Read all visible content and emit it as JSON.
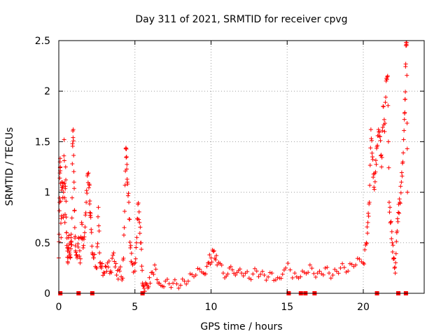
{
  "chart_data": {
    "type": "scatter",
    "title": "Day 311 of 2021, SRMTID for receiver cpvg",
    "xlabel": "GPS time / hours",
    "ylabel": "SRMTID / TECUs",
    "xlim": [
      0,
      24
    ],
    "ylim": [
      0,
      2.5
    ],
    "xticks": [
      0,
      5,
      10,
      15,
      20
    ],
    "xtick_labels": [
      "0",
      "5",
      "10",
      "15",
      "20"
    ],
    "yticks": [
      0,
      0.5,
      1,
      1.5,
      2,
      2.5
    ],
    "ytick_labels": [
      "0",
      "0.5",
      "1",
      "1.5",
      "2",
      "2.5"
    ],
    "grid": true,
    "marker": "+",
    "color": "#ff0000",
    "series": [
      {
        "name": "SRMTID",
        "points": [
          [
            0.0,
            0.35
          ],
          [
            0.05,
            0.9
          ],
          [
            0.08,
            1.3
          ],
          [
            0.1,
            1.25
          ],
          [
            0.15,
            0.55
          ],
          [
            0.2,
            1.1
          ],
          [
            0.25,
            1.05
          ],
          [
            0.3,
            0.75
          ],
          [
            0.35,
            1.52
          ],
          [
            0.4,
            0.7
          ],
          [
            0.45,
            1.25
          ],
          [
            0.5,
            0.6
          ],
          [
            0.55,
            0.45
          ],
          [
            0.6,
            0.3
          ],
          [
            0.65,
            0.55
          ],
          [
            0.7,
            0.4
          ],
          [
            0.75,
            0.35
          ],
          [
            0.8,
            0.55
          ],
          [
            0.85,
            0.48
          ],
          [
            0.9,
            1.48
          ],
          [
            0.95,
            1.62
          ],
          [
            1.0,
            1.1
          ],
          [
            1.05,
            0.65
          ],
          [
            1.1,
            0.42
          ],
          [
            1.2,
            0.35
          ],
          [
            1.3,
            0.55
          ],
          [
            1.4,
            0.3
          ],
          [
            1.5,
            0.7
          ],
          [
            1.6,
            0.45
          ],
          [
            1.7,
            0.6
          ],
          [
            1.8,
            0.9
          ],
          [
            1.9,
            1.18
          ],
          [
            2.0,
            1.08
          ],
          [
            2.05,
            0.8
          ],
          [
            2.1,
            0.75
          ],
          [
            2.2,
            0.4
          ],
          [
            2.3,
            0.35
          ],
          [
            2.5,
            0.25
          ],
          [
            2.6,
            0.85
          ],
          [
            2.7,
            0.3
          ],
          [
            2.8,
            0.25
          ],
          [
            3.0,
            0.2
          ],
          [
            3.2,
            0.3
          ],
          [
            3.4,
            0.22
          ],
          [
            3.6,
            0.4
          ],
          [
            3.8,
            0.18
          ],
          [
            4.0,
            0.22
          ],
          [
            4.2,
            0.15
          ],
          [
            4.3,
            0.65
          ],
          [
            4.4,
            1.43
          ],
          [
            4.45,
            1.35
          ],
          [
            4.5,
            1.1
          ],
          [
            4.6,
            0.9
          ],
          [
            4.7,
            0.45
          ],
          [
            4.8,
            0.3
          ],
          [
            5.0,
            0.22
          ],
          [
            5.1,
            0.5
          ],
          [
            5.2,
            0.88
          ],
          [
            5.3,
            0.7
          ],
          [
            5.4,
            0.5
          ],
          [
            5.5,
            0.1
          ],
          [
            5.6,
            0.05
          ],
          [
            5.8,
            0.08
          ],
          [
            6.0,
            0.1
          ],
          [
            6.3,
            0.28
          ],
          [
            6.6,
            0.1
          ],
          [
            7.0,
            0.12
          ],
          [
            7.5,
            0.1
          ],
          [
            8.0,
            0.08
          ],
          [
            8.5,
            0.12
          ],
          [
            9.0,
            0.18
          ],
          [
            9.5,
            0.2
          ],
          [
            9.8,
            0.3
          ],
          [
            10.0,
            0.35
          ],
          [
            10.2,
            0.42
          ],
          [
            10.4,
            0.28
          ],
          [
            10.8,
            0.2
          ],
          [
            11.2,
            0.25
          ],
          [
            11.6,
            0.18
          ],
          [
            12.0,
            0.2
          ],
          [
            12.5,
            0.15
          ],
          [
            13.0,
            0.22
          ],
          [
            13.5,
            0.18
          ],
          [
            14.0,
            0.2
          ],
          [
            14.5,
            0.15
          ],
          [
            14.9,
            0.25
          ],
          [
            15.5,
            0.2
          ],
          [
            16.0,
            0.22
          ],
          [
            16.5,
            0.28
          ],
          [
            17.0,
            0.2
          ],
          [
            17.5,
            0.25
          ],
          [
            18.0,
            0.18
          ],
          [
            18.5,
            0.25
          ],
          [
            19.0,
            0.22
          ],
          [
            19.5,
            0.28
          ],
          [
            20.0,
            0.3
          ],
          [
            20.2,
            0.5
          ],
          [
            20.3,
            0.7
          ],
          [
            20.4,
            0.9
          ],
          [
            20.5,
            1.62
          ],
          [
            20.6,
            1.35
          ],
          [
            20.7,
            1.05
          ],
          [
            20.8,
            1.2
          ],
          [
            20.9,
            1.45
          ],
          [
            21.0,
            1.62
          ],
          [
            21.1,
            1.55
          ],
          [
            21.2,
            1.25
          ],
          [
            21.3,
            1.85
          ],
          [
            21.4,
            1.6
          ],
          [
            21.5,
            2.1
          ],
          [
            21.6,
            2.15
          ],
          [
            21.7,
            0.9
          ],
          [
            21.8,
            0.7
          ],
          [
            21.9,
            0.5
          ],
          [
            22.0,
            0.35
          ],
          [
            22.1,
            0.2
          ],
          [
            22.2,
            0.6
          ],
          [
            22.3,
            0.8
          ],
          [
            22.4,
            0.9
          ],
          [
            22.5,
            1.1
          ],
          [
            22.6,
            1.3
          ],
          [
            22.7,
            1.72
          ],
          [
            22.75,
            1.92
          ],
          [
            22.8,
            2.45
          ],
          [
            22.85,
            2.48
          ],
          [
            22.9,
            1.0
          ]
        ]
      }
    ],
    "zero_gaps_hours": [
      0.1,
      1.3,
      2.2,
      5.5,
      15.1,
      15.9,
      16.2,
      16.8,
      20.9,
      22.3,
      22.8
    ]
  }
}
